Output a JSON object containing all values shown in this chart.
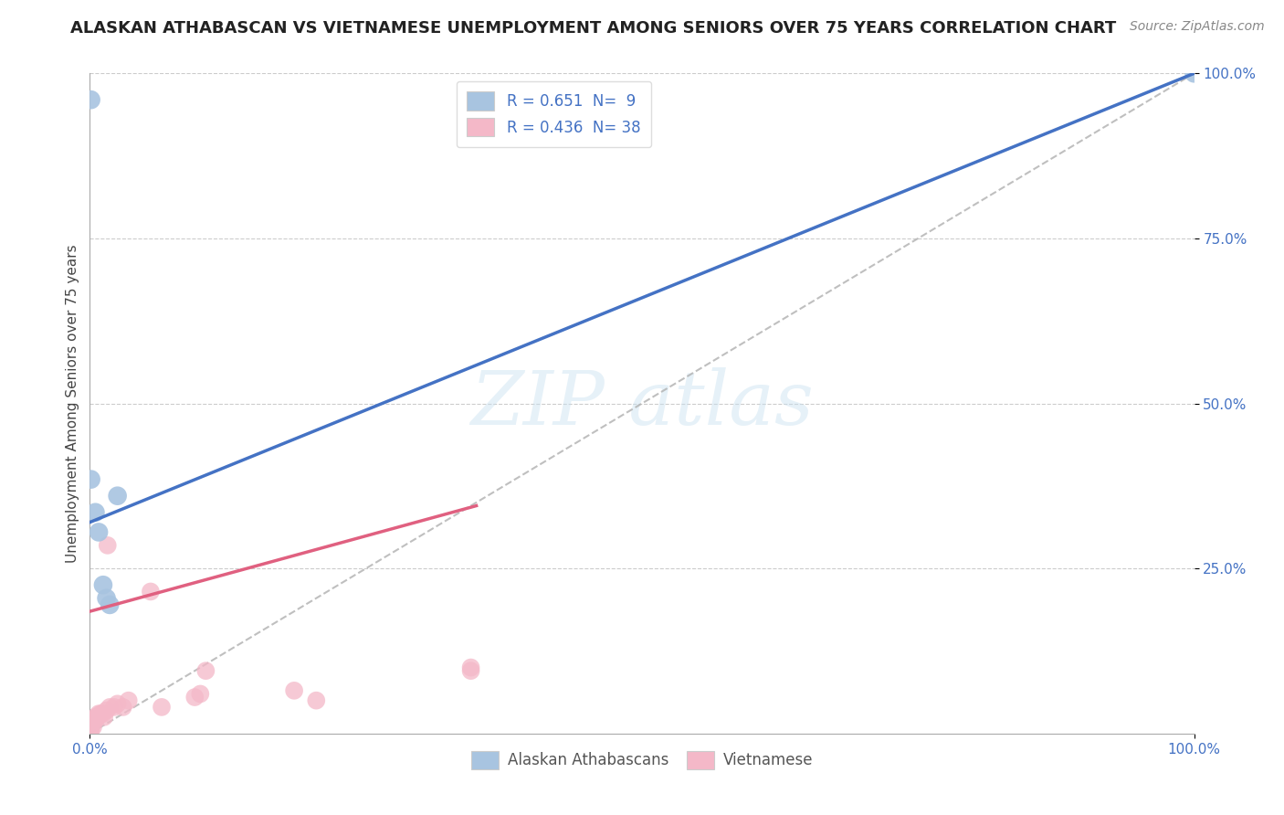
{
  "title": "ALASKAN ATHABASCAN VS VIETNAMESE UNEMPLOYMENT AMONG SENIORS OVER 75 YEARS CORRELATION CHART",
  "source": "Source: ZipAtlas.com",
  "ylabel": "Unemployment Among Seniors over 75 years",
  "xlim": [
    0,
    1
  ],
  "ylim": [
    0,
    1
  ],
  "xtick_labels": [
    "0.0%",
    "100.0%"
  ],
  "ytick_labels": [
    "25.0%",
    "50.0%",
    "75.0%",
    "100.0%"
  ],
  "ytick_positions": [
    0.25,
    0.5,
    0.75,
    1.0
  ],
  "xtick_positions": [
    0.0,
    1.0
  ],
  "blue_R": 0.651,
  "blue_N": 9,
  "pink_R": 0.436,
  "pink_N": 38,
  "blue_color": "#a8c4e0",
  "pink_color": "#f4b8c8",
  "blue_line_color": "#4472c4",
  "pink_line_color": "#e06080",
  "grid_color": "#cccccc",
  "background_color": "#ffffff",
  "blue_line_x0": 0.0,
  "blue_line_y0": 0.32,
  "blue_line_x1": 1.0,
  "blue_line_y1": 1.0,
  "pink_line_x0": 0.0,
  "pink_line_y0": 0.185,
  "pink_line_x1": 0.35,
  "pink_line_y1": 0.345,
  "blue_scatter_x": [
    0.001,
    0.001,
    0.005,
    0.008,
    0.012,
    0.015,
    0.018,
    0.025,
    1.0
  ],
  "blue_scatter_y": [
    0.96,
    0.385,
    0.335,
    0.305,
    0.225,
    0.205,
    0.195,
    0.36,
    1.0
  ],
  "pink_scatter_x": [
    0.0,
    0.0,
    0.0,
    0.0,
    0.001,
    0.001,
    0.001,
    0.002,
    0.002,
    0.002,
    0.003,
    0.003,
    0.004,
    0.004,
    0.005,
    0.005,
    0.007,
    0.008,
    0.009,
    0.01,
    0.012,
    0.013,
    0.015,
    0.016,
    0.018,
    0.022,
    0.025,
    0.03,
    0.035,
    0.055,
    0.065,
    0.095,
    0.1,
    0.105,
    0.185,
    0.205,
    0.345,
    0.345
  ],
  "pink_scatter_y": [
    0.005,
    0.008,
    0.01,
    0.012,
    0.005,
    0.01,
    0.015,
    0.015,
    0.018,
    0.02,
    0.01,
    0.018,
    0.02,
    0.022,
    0.02,
    0.025,
    0.025,
    0.03,
    0.028,
    0.03,
    0.03,
    0.025,
    0.035,
    0.285,
    0.04,
    0.04,
    0.045,
    0.04,
    0.05,
    0.215,
    0.04,
    0.055,
    0.06,
    0.095,
    0.065,
    0.05,
    0.095,
    0.1
  ],
  "legend_box_color": "#ffffff",
  "legend_text_color_dark": "#333333",
  "legend_value_color": "#4472c4",
  "title_fontsize": 13,
  "axis_label_fontsize": 11,
  "tick_fontsize": 11,
  "legend_fontsize": 12,
  "source_fontsize": 10
}
